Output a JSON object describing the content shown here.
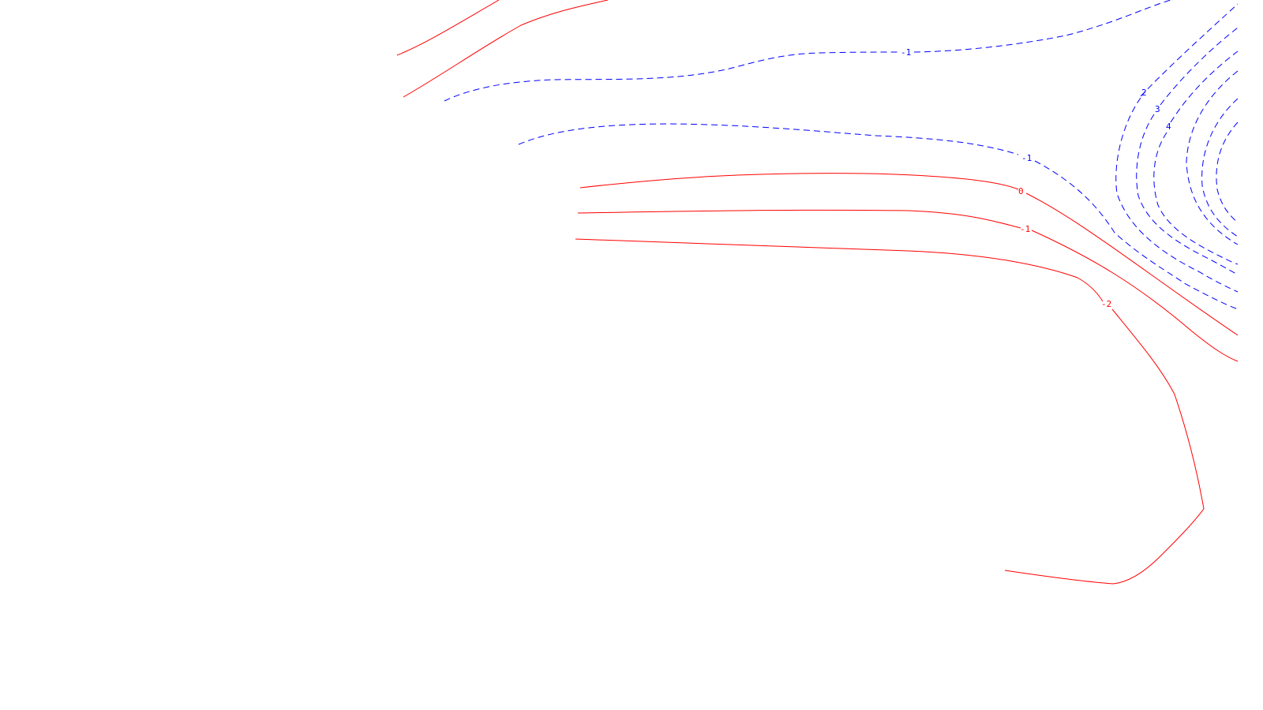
{
  "map": {
    "type": "contour",
    "colors": {
      "background": "#ffffff",
      "positive": "#ff0000",
      "negative": "#0000ff"
    },
    "styles": {
      "positive": "solid",
      "negative": "dashed"
    },
    "contour_labels": {
      "red_0": "0",
      "red_neg1": "-1",
      "red_neg2": "-2",
      "blue_top_neg1": "-1",
      "blue_mid_neg1": "-1",
      "blue_2": "2",
      "blue_3": "3",
      "blue_4": "4"
    }
  }
}
